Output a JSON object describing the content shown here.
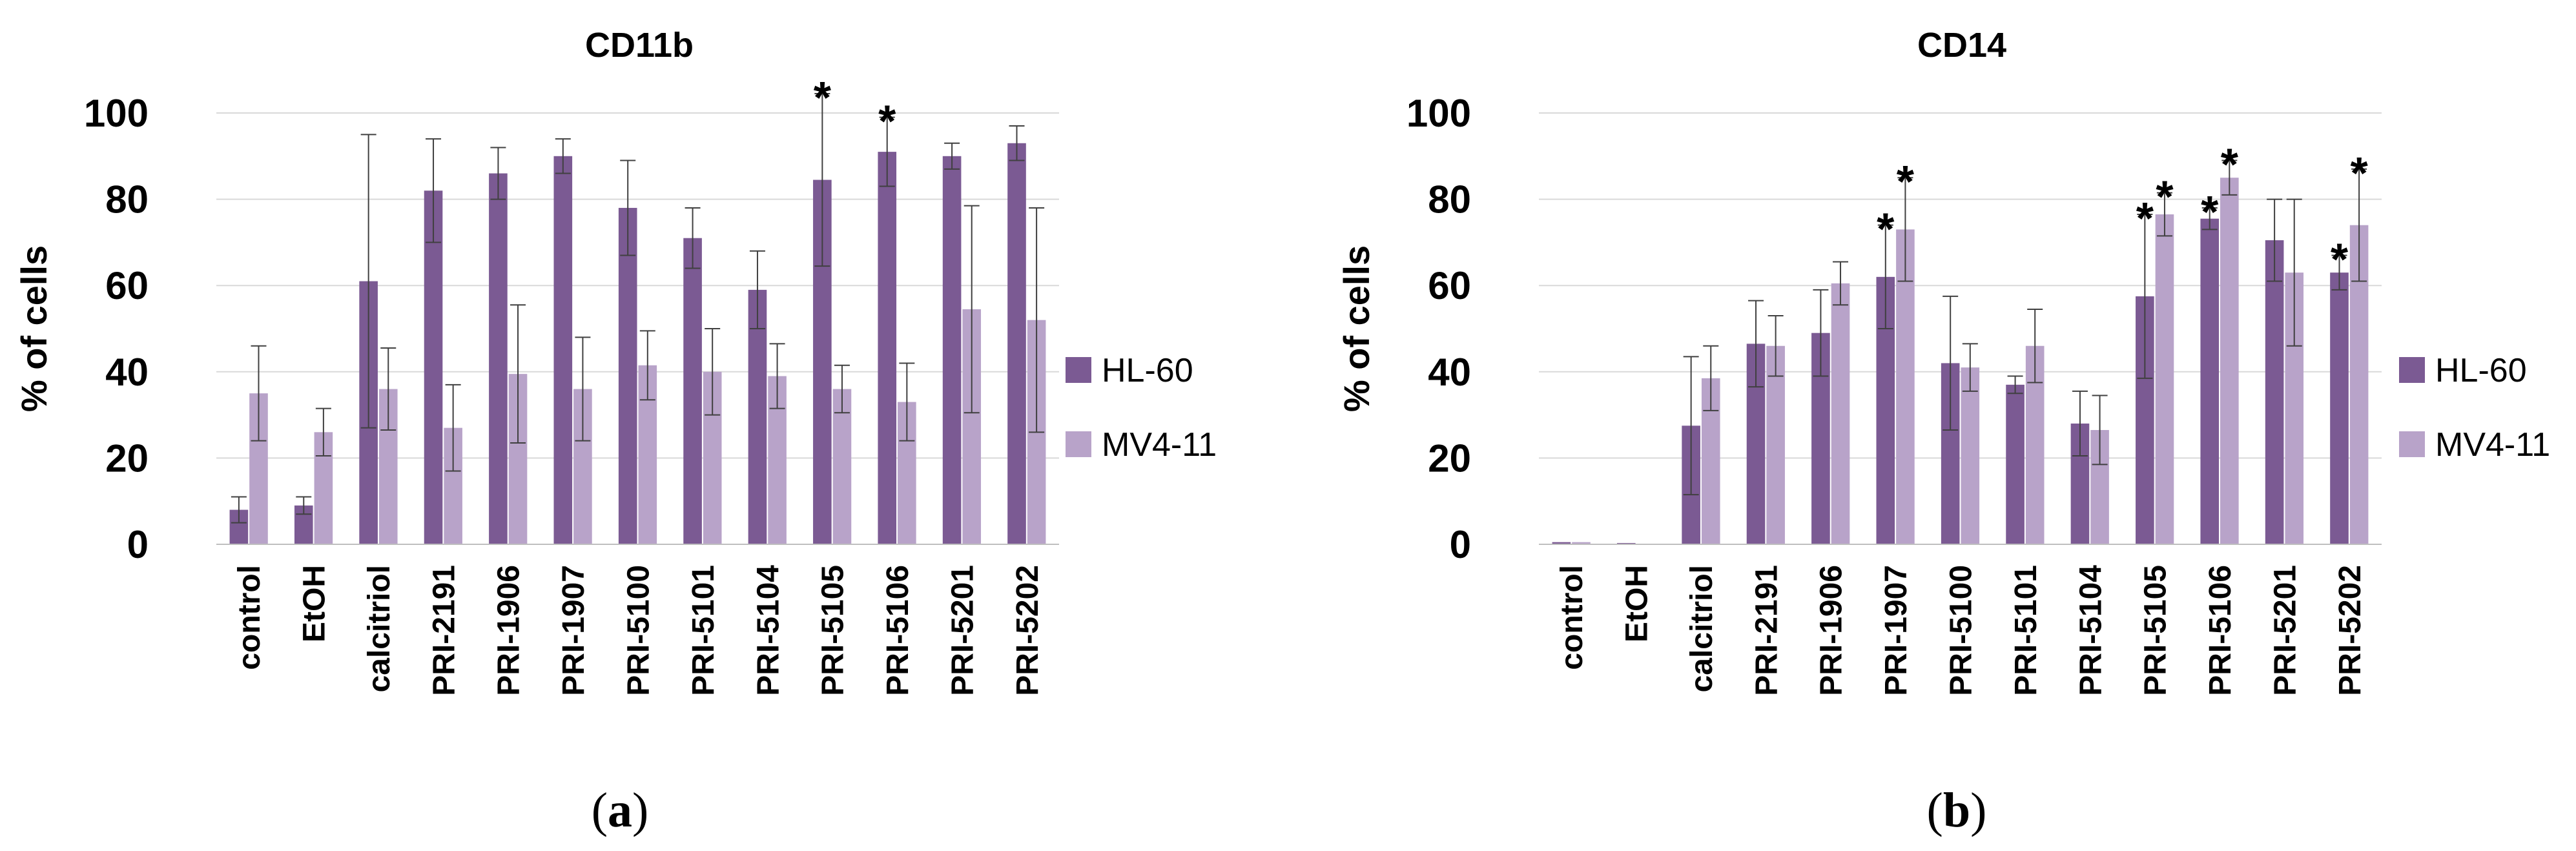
{
  "colors": {
    "hl60": "#7b5a93",
    "mv411": "#b8a3c9",
    "grid": "#d9d9d9",
    "error": "#404040"
  },
  "chart_data": [
    {
      "type": "bar",
      "title": "CD11b",
      "panel_label": "a",
      "ylabel": "% of cells",
      "xlabel": "",
      "ylim": [
        0,
        100
      ],
      "yticks": [
        "0",
        "20",
        "40",
        "60",
        "80",
        "100"
      ],
      "categories": [
        "control",
        "EtOH",
        "calcitriol",
        "PRI-2191",
        "PRI-1906",
        "PRI-1907",
        "PRI-5100",
        "PRI-5101",
        "PRI-5104",
        "PRI-5105",
        "PRI-5106",
        "PRI-5201",
        "PRI-5202"
      ],
      "series": [
        {
          "name": "HL-60",
          "values": [
            8,
            9,
            61,
            82,
            86,
            90,
            78,
            71,
            59,
            84.5,
            91,
            90,
            93
          ],
          "errors": [
            3,
            2,
            34,
            12,
            6,
            4,
            11,
            7,
            9,
            20,
            8,
            3,
            4
          ],
          "significant": [
            false,
            false,
            false,
            false,
            false,
            false,
            false,
            false,
            false,
            true,
            true,
            false,
            false
          ]
        },
        {
          "name": "MV4-11",
          "values": [
            35,
            26,
            36,
            27,
            39.5,
            36,
            41.5,
            40,
            39,
            36,
            33,
            54.5,
            52
          ],
          "errors": [
            11,
            5.5,
            9.5,
            10,
            16,
            12,
            8,
            10,
            7.5,
            5.5,
            9,
            24,
            26
          ],
          "significant": [
            false,
            false,
            false,
            false,
            false,
            false,
            false,
            false,
            false,
            false,
            false,
            false,
            false
          ]
        }
      ],
      "legend": [
        "HL-60",
        "MV4-11"
      ],
      "significance_marker": "*"
    },
    {
      "type": "bar",
      "title": "CD14",
      "panel_label": "b",
      "ylabel": "% of cells",
      "xlabel": "",
      "ylim": [
        0,
        100
      ],
      "yticks": [
        "0",
        "20",
        "40",
        "60",
        "80",
        "100"
      ],
      "categories": [
        "control",
        "EtOH",
        "calcitriol",
        "PRI-2191",
        "PRI-1906",
        "PRI-1907",
        "PRI-5100",
        "PRI-5101",
        "PRI-5104",
        "PRI-5105",
        "PRI-5106",
        "PRI-5201",
        "PRI-5202"
      ],
      "series": [
        {
          "name": "HL-60",
          "values": [
            0.5,
            0.3,
            27.5,
            46.5,
            49,
            62,
            42,
            37,
            28,
            57.5,
            75.5,
            70.5,
            63
          ],
          "errors": [
            0,
            0,
            16,
            10,
            10,
            12,
            15.5,
            2,
            7.5,
            19,
            2.5,
            9.5,
            4
          ],
          "significant": [
            false,
            false,
            false,
            false,
            false,
            true,
            false,
            false,
            false,
            true,
            true,
            false,
            true
          ]
        },
        {
          "name": "MV4-11",
          "values": [
            0.5,
            0,
            38.5,
            46,
            60.5,
            73,
            41,
            46,
            26.5,
            76.5,
            85,
            63,
            74
          ],
          "errors": [
            0,
            0,
            7.5,
            7,
            5,
            12,
            5.5,
            8.5,
            8,
            5,
            4,
            17,
            13
          ],
          "significant": [
            false,
            false,
            false,
            false,
            false,
            true,
            false,
            false,
            false,
            true,
            true,
            false,
            true
          ]
        }
      ],
      "legend": [
        "HL-60",
        "MV4-11"
      ],
      "significance_marker": "*"
    }
  ]
}
